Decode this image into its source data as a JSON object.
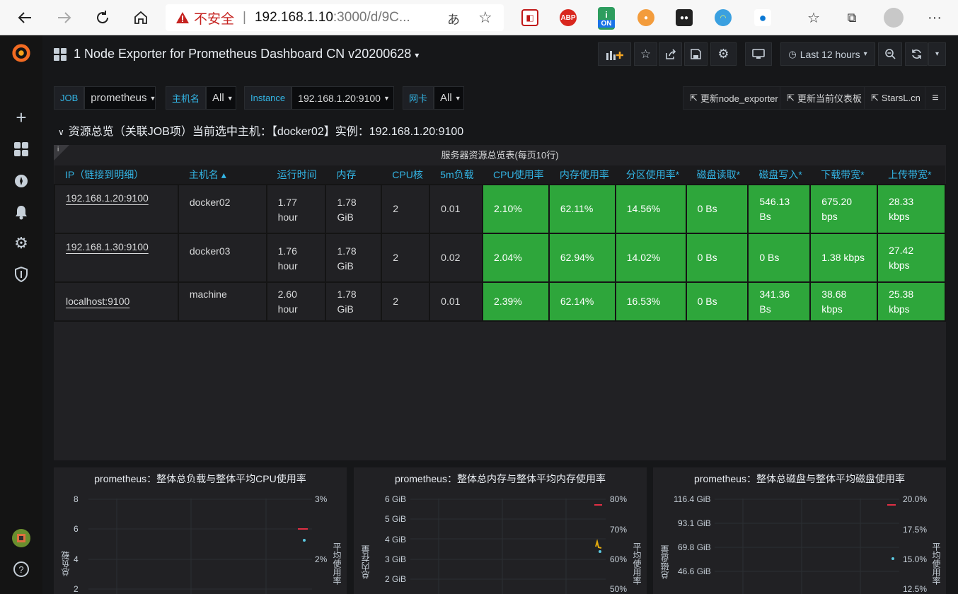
{
  "browser": {
    "warning": "不安全",
    "url_host": "192.168.1.10",
    "url_path": ":3000/d/9C...",
    "extensions": [
      "mcafee-icon",
      "adblock-icon",
      "on-icon",
      "honey-icon",
      "tampermonkey-icon",
      "rainbow-icon",
      "onedrive-icon"
    ],
    "ext_labels": {
      "abp": "ABP",
      "on": "ON"
    }
  },
  "dashboard": {
    "title": "1 Node Exporter for Prometheus Dashboard CN v20200628",
    "time_range": "Last 12 hours"
  },
  "variables": [
    {
      "label": "JOB",
      "value": "prometheus"
    },
    {
      "label": "主机名",
      "value": "All"
    },
    {
      "label": "Instance",
      "value": "192.168.1.20:9100"
    },
    {
      "label": "网卡",
      "value": "All"
    }
  ],
  "links": [
    "更新node_exporter",
    "更新当前仪表板",
    "StarsL.cn"
  ],
  "row_title": "资源总览（关联JOB项）当前选中主机：【docker02】实例：192.168.1.20:9100",
  "table": {
    "title": "服务器资源总览表(每页10行)",
    "info_icon": "i",
    "headers": [
      "IP（链接到明细）",
      "主机名 ▴",
      "运行时间",
      "内存",
      "CPU核",
      "5m负载",
      "CPU使用率",
      "内存使用率",
      "分区使用率*",
      "磁盘读取*",
      "磁盘写入*",
      "下载带宽*",
      "上传带宽*"
    ],
    "rows": [
      {
        "ip": "192.168.1.20:9100",
        "host": "docker02",
        "uptime": [
          "1.77",
          "hour"
        ],
        "mem": [
          "1.78",
          "GiB"
        ],
        "cpu": "2",
        "load": "0.01",
        "cpu_use": "2.10%",
        "mem_use": "62.11%",
        "part": "14.56%",
        "dread": "0 Bs",
        "dwrite": [
          "546.13",
          "Bs"
        ],
        "down": [
          "675.20",
          "bps"
        ],
        "up": [
          "28.33",
          "kbps"
        ]
      },
      {
        "ip": "192.168.1.30:9100",
        "host": "docker03",
        "uptime": [
          "1.76",
          "hour"
        ],
        "mem": [
          "1.78",
          "GiB"
        ],
        "cpu": "2",
        "load": "0.02",
        "cpu_use": "2.04%",
        "mem_use": "62.94%",
        "part": "14.02%",
        "dread": "0 Bs",
        "dwrite": [
          "0 Bs",
          ""
        ],
        "down": [
          "1.38 kbps",
          ""
        ],
        "up": [
          "27.42",
          "kbps"
        ]
      },
      {
        "ip": "localhost:9100",
        "host": "machine",
        "uptime": [
          "2.60",
          "hour"
        ],
        "mem": [
          "1.78",
          "GiB"
        ],
        "cpu": "2",
        "load": "0.01",
        "cpu_use": "2.39%",
        "mem_use": "62.14%",
        "part": "16.53%",
        "dread": "0 Bs",
        "dwrite": [
          "341.36",
          "Bs"
        ],
        "down": [
          "38.68",
          "kbps"
        ],
        "up": [
          "25.38",
          "kbps"
        ]
      }
    ]
  },
  "graphs": [
    {
      "title": "prometheus：整体总负载与整体平均CPU使用率",
      "left_ticks": [
        "8",
        "6",
        "4",
        "2"
      ],
      "right_ticks": [
        "3%",
        "2%"
      ],
      "left_label": "总负载",
      "right_label": "平均使用率"
    },
    {
      "title": "prometheus：整体总内存与整体平均内存使用率",
      "left_ticks": [
        "6 GiB",
        "5 GiB",
        "4 GiB",
        "3 GiB",
        "2 GiB"
      ],
      "right_ticks": [
        "80%",
        "70%",
        "60%",
        "50%"
      ],
      "left_label": "总内存量",
      "right_label": "平均使用率"
    },
    {
      "title": "prometheus：整体总磁盘与整体平均磁盘使用率",
      "left_ticks": [
        "116.4 GiB",
        "93.1 GiB",
        "69.8 GiB",
        "46.6 GiB"
      ],
      "right_ticks": [
        "20.0%",
        "17.5%",
        "15.0%",
        "12.5%"
      ],
      "left_label": "总磁盘量",
      "right_label": "平均使用率"
    }
  ],
  "colors": {
    "green": "#2ea63b",
    "accent": "#33b5e5",
    "bg": "#161719",
    "panel": "#212124"
  }
}
